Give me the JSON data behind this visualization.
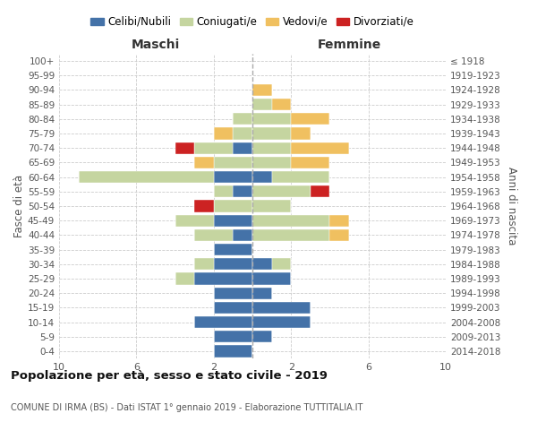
{
  "age_groups": [
    "0-4",
    "5-9",
    "10-14",
    "15-19",
    "20-24",
    "25-29",
    "30-34",
    "35-39",
    "40-44",
    "45-49",
    "50-54",
    "55-59",
    "60-64",
    "65-69",
    "70-74",
    "75-79",
    "80-84",
    "85-89",
    "90-94",
    "95-99",
    "100+"
  ],
  "birth_years": [
    "2014-2018",
    "2009-2013",
    "2004-2008",
    "1999-2003",
    "1994-1998",
    "1989-1993",
    "1984-1988",
    "1979-1983",
    "1974-1978",
    "1969-1973",
    "1964-1968",
    "1959-1963",
    "1954-1958",
    "1949-1953",
    "1944-1948",
    "1939-1943",
    "1934-1938",
    "1929-1933",
    "1924-1928",
    "1919-1923",
    "≤ 1918"
  ],
  "colors": {
    "celibi": "#4472a8",
    "coniugati": "#c5d5a0",
    "vedovi": "#f0c060",
    "divorziati": "#cc2222"
  },
  "maschi": {
    "celibi": [
      2,
      2,
      3,
      2,
      2,
      3,
      2,
      2,
      1,
      2,
      0,
      1,
      2,
      0,
      1,
      0,
      0,
      0,
      0,
      0,
      0
    ],
    "coniugati": [
      0,
      0,
      0,
      0,
      0,
      1,
      1,
      0,
      2,
      2,
      2,
      1,
      7,
      2,
      2,
      1,
      1,
      0,
      0,
      0,
      0
    ],
    "vedovi": [
      0,
      0,
      0,
      0,
      0,
      0,
      0,
      0,
      0,
      0,
      0,
      0,
      0,
      1,
      0,
      1,
      0,
      0,
      0,
      0,
      0
    ],
    "divorziati": [
      0,
      0,
      0,
      0,
      0,
      0,
      0,
      0,
      0,
      0,
      1,
      0,
      0,
      0,
      1,
      0,
      0,
      0,
      0,
      0,
      0
    ]
  },
  "femmine": {
    "celibi": [
      0,
      1,
      3,
      3,
      1,
      2,
      1,
      0,
      0,
      0,
      0,
      0,
      1,
      0,
      0,
      0,
      0,
      0,
      0,
      0,
      0
    ],
    "coniugati": [
      0,
      0,
      0,
      0,
      0,
      0,
      1,
      0,
      4,
      4,
      2,
      3,
      3,
      2,
      2,
      2,
      2,
      1,
      0,
      0,
      0
    ],
    "vedovi": [
      0,
      0,
      0,
      0,
      0,
      0,
      0,
      0,
      1,
      1,
      0,
      0,
      0,
      2,
      3,
      1,
      2,
      1,
      1,
      0,
      0
    ],
    "divorziati": [
      0,
      0,
      0,
      0,
      0,
      0,
      0,
      0,
      0,
      0,
      0,
      1,
      0,
      0,
      0,
      0,
      0,
      0,
      0,
      0,
      0
    ]
  },
  "xlim": 10,
  "title": "Popolazione per età, sesso e stato civile - 2019",
  "subtitle1": "COMUNE DI IRMA (BS) - Dati ISTAT 1° gennaio 2019 - Elaborazione TUTTITALIA.IT",
  "xlabel_left": "Maschi",
  "xlabel_right": "Femmine",
  "ylabel_left": "Fasce di età",
  "ylabel_right": "Anni di nascita",
  "legend_labels": [
    "Celibi/Nubili",
    "Coniugati/e",
    "Vedovi/e",
    "Divorziati/e"
  ],
  "background_color": "#ffffff",
  "grid_color": "#cccccc"
}
